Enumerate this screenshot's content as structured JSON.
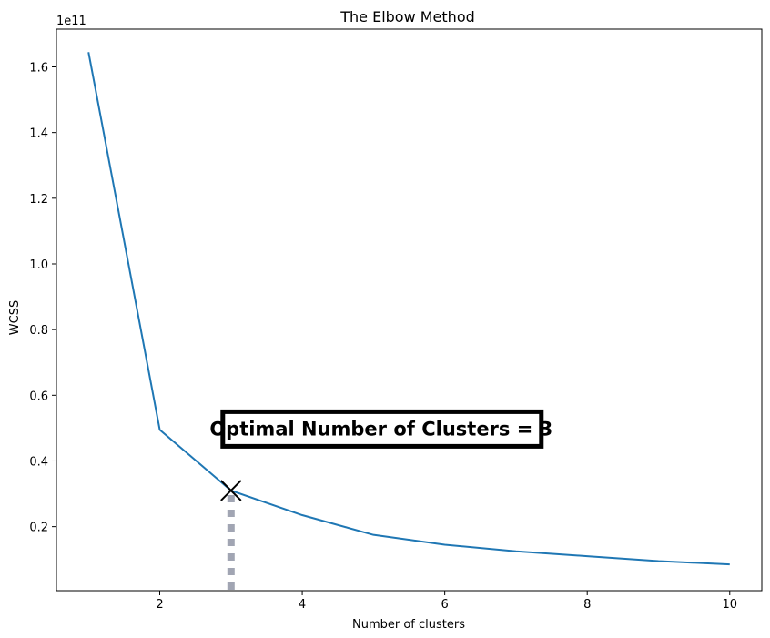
{
  "chart_data": {
    "type": "line",
    "title": "The Elbow Method",
    "xlabel": "Number of clusters",
    "ylabel": "WCSS",
    "offset_label": "1e11",
    "x": [
      1,
      2,
      3,
      4,
      5,
      6,
      7,
      8,
      9,
      10
    ],
    "series": [
      {
        "values": [
          164500000000.0,
          49500000000.0,
          31000000000.0,
          23500000000.0,
          17500000000.0,
          14500000000.0,
          12500000000.0,
          11000000000.0,
          9500000000.0,
          8500000000.0
        ]
      }
    ],
    "xlim": [
      0.55,
      10.45
    ],
    "ylim": [
      500000000.0,
      171500000000.0
    ],
    "x_ticks": [
      2,
      4,
      6,
      8,
      10
    ],
    "x_tick_labels": [
      "2",
      "4",
      "6",
      "8",
      "10"
    ],
    "y_ticks": [
      20000000000.0,
      40000000000.0,
      60000000000.0,
      80000000000.0,
      100000000000.0,
      120000000000.0,
      140000000000.0,
      160000000000.0
    ],
    "y_tick_labels": [
      "0.2",
      "0.4",
      "0.6",
      "0.8",
      "1.0",
      "1.2",
      "1.4",
      "1.6"
    ],
    "grid": false,
    "line_color": "#1f77b4",
    "marker": {
      "x": 3,
      "y": 31000000000.0,
      "symbol": "x-mark",
      "color": "#000000"
    },
    "dropline": {
      "x": 3,
      "color": "#a1a5b3",
      "style": "dotted"
    },
    "annotation": {
      "text": "Optimal Number of Clusters = 3",
      "x": 3,
      "y": 50000000000.0
    }
  }
}
